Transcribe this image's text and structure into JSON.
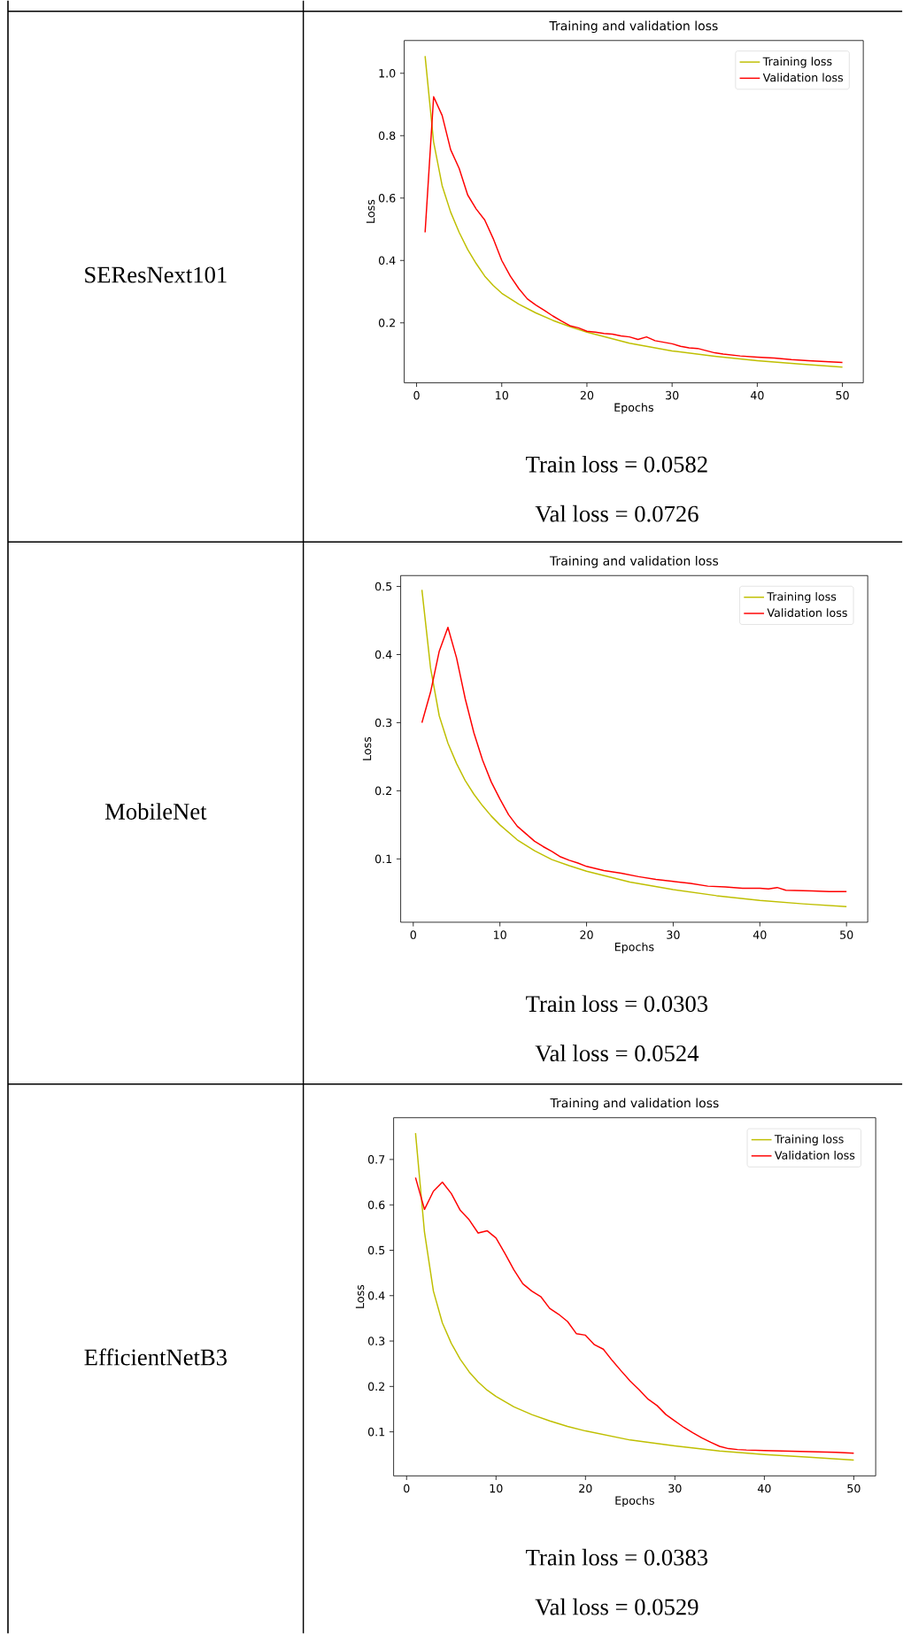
{
  "chart_data": [
    {
      "type": "line",
      "title": "Training and validation loss",
      "xlabel": "Epochs",
      "ylabel": "Loss",
      "legend": "top right",
      "xlim": [
        -1.45,
        52.45
      ],
      "ylim": [
        0.008,
        1.105
      ],
      "xticks": [
        0,
        10,
        20,
        30,
        40,
        50
      ],
      "yticks": [
        0.2,
        0.4,
        0.6,
        0.8,
        {
          "value": 1,
          "label": "1.0"
        }
      ],
      "annotations": [
        "SEResNext101",
        "Train loss = 0.0582",
        "Val loss = 0.0726"
      ],
      "series": [
        {
          "name": "Training loss",
          "color": "#bfbf00",
          "x": [
            1,
            2,
            3,
            4,
            5,
            6,
            7,
            8,
            9,
            10,
            12,
            14,
            16,
            18,
            20,
            25,
            30,
            35,
            40,
            45,
            50
          ],
          "values": [
            1.055,
            0.78,
            0.64,
            0.555,
            0.49,
            0.435,
            0.39,
            0.35,
            0.32,
            0.295,
            0.26,
            0.232,
            0.208,
            0.188,
            0.17,
            0.135,
            0.11,
            0.093,
            0.079,
            0.068,
            0.058
          ]
        },
        {
          "name": "Validation loss",
          "color": "#ff0000",
          "x": [
            1,
            2,
            3,
            4,
            5,
            6,
            7,
            8,
            9,
            10,
            11,
            12,
            13,
            14,
            15,
            16,
            17,
            18,
            19,
            20,
            21,
            22,
            23,
            24,
            25,
            26,
            27,
            28,
            29,
            30,
            31,
            32,
            33,
            34,
            35,
            36,
            38,
            40,
            42,
            44,
            46,
            48,
            50
          ],
          "values": [
            0.49,
            0.925,
            0.865,
            0.755,
            0.695,
            0.61,
            0.565,
            0.53,
            0.47,
            0.4,
            0.35,
            0.31,
            0.277,
            0.257,
            0.24,
            0.222,
            0.206,
            0.191,
            0.184,
            0.173,
            0.17,
            0.166,
            0.164,
            0.158,
            0.155,
            0.147,
            0.155,
            0.143,
            0.138,
            0.133,
            0.125,
            0.12,
            0.118,
            0.111,
            0.104,
            0.1,
            0.094,
            0.09,
            0.087,
            0.082,
            0.079,
            0.076,
            0.073
          ]
        }
      ]
    },
    {
      "type": "line",
      "title": "Training and validation loss",
      "xlabel": "Epochs",
      "ylabel": "Loss",
      "legend": "top right",
      "xlim": [
        -1.45,
        52.45
      ],
      "ylim": [
        0.007,
        0.516
      ],
      "xticks": [
        0,
        10,
        20,
        30,
        40,
        50
      ],
      "yticks": [
        0.1,
        0.2,
        0.3,
        0.4,
        0.5
      ],
      "annotations": [
        "MobileNet",
        "Train loss = 0.0303",
        "Val loss = 0.0524"
      ],
      "series": [
        {
          "name": "Training loss",
          "color": "#bfbf00",
          "x": [
            1,
            2,
            3,
            4,
            5,
            6,
            7,
            8,
            9,
            10,
            12,
            14,
            16,
            18,
            20,
            25,
            30,
            35,
            40,
            45,
            50
          ],
          "values": [
            0.495,
            0.38,
            0.31,
            0.27,
            0.24,
            0.215,
            0.195,
            0.178,
            0.163,
            0.15,
            0.128,
            0.112,
            0.099,
            0.09,
            0.082,
            0.066,
            0.055,
            0.046,
            0.039,
            0.034,
            0.03
          ]
        },
        {
          "name": "Validation loss",
          "color": "#ff0000",
          "x": [
            1,
            2,
            3,
            4,
            5,
            6,
            7,
            8,
            9,
            10,
            11,
            12,
            13,
            14,
            15,
            16,
            17,
            18,
            19,
            20,
            22,
            24,
            26,
            28,
            30,
            32,
            34,
            36,
            38,
            40,
            41,
            42,
            43,
            46,
            48,
            50
          ],
          "values": [
            0.3,
            0.345,
            0.405,
            0.44,
            0.395,
            0.335,
            0.285,
            0.245,
            0.213,
            0.188,
            0.165,
            0.148,
            0.137,
            0.126,
            0.118,
            0.111,
            0.103,
            0.098,
            0.094,
            0.089,
            0.083,
            0.079,
            0.074,
            0.07,
            0.067,
            0.064,
            0.06,
            0.059,
            0.057,
            0.057,
            0.056,
            0.058,
            0.054,
            0.053,
            0.052,
            0.052
          ]
        }
      ]
    },
    {
      "type": "line",
      "title": "Training and validation loss",
      "xlabel": "Epochs",
      "ylabel": "Loss",
      "legend": "top right",
      "xlim": [
        -1.45,
        52.45
      ],
      "ylim": [
        0.003,
        0.792
      ],
      "xticks": [
        0,
        10,
        20,
        30,
        40,
        50
      ],
      "yticks": [
        0.1,
        0.2,
        0.3,
        0.4,
        0.5,
        0.6,
        0.7
      ],
      "annotations": [
        "EfficientNetB3",
        "Train loss = 0.0383",
        "Val loss = 0.0529"
      ],
      "series": [
        {
          "name": "Training loss",
          "color": "#bfbf00",
          "x": [
            1,
            2,
            3,
            4,
            5,
            6,
            7,
            8,
            9,
            10,
            12,
            14,
            16,
            18,
            20,
            25,
            30,
            35,
            40,
            45,
            50
          ],
          "values": [
            0.758,
            0.54,
            0.41,
            0.34,
            0.295,
            0.26,
            0.232,
            0.21,
            0.192,
            0.178,
            0.155,
            0.138,
            0.124,
            0.112,
            0.102,
            0.082,
            0.069,
            0.058,
            0.05,
            0.044,
            0.038
          ]
        },
        {
          "name": "Validation loss",
          "color": "#ff0000",
          "x": [
            1,
            2,
            3,
            4,
            5,
            6,
            7,
            8,
            9,
            10,
            11,
            12,
            13,
            14,
            15,
            16,
            17,
            18,
            19,
            20,
            21,
            22,
            23,
            24,
            25,
            26,
            27,
            28,
            29,
            30,
            31,
            32,
            33,
            34,
            35,
            36,
            37,
            38,
            40,
            42,
            44,
            46,
            48,
            50
          ],
          "values": [
            0.66,
            0.59,
            0.63,
            0.65,
            0.625,
            0.588,
            0.567,
            0.538,
            0.543,
            0.527,
            0.493,
            0.457,
            0.426,
            0.41,
            0.398,
            0.372,
            0.359,
            0.343,
            0.316,
            0.313,
            0.292,
            0.282,
            0.257,
            0.234,
            0.212,
            0.193,
            0.172,
            0.158,
            0.138,
            0.124,
            0.11,
            0.098,
            0.087,
            0.077,
            0.068,
            0.063,
            0.061,
            0.06,
            0.059,
            0.058,
            0.057,
            0.056,
            0.055,
            0.053
          ]
        }
      ]
    }
  ]
}
